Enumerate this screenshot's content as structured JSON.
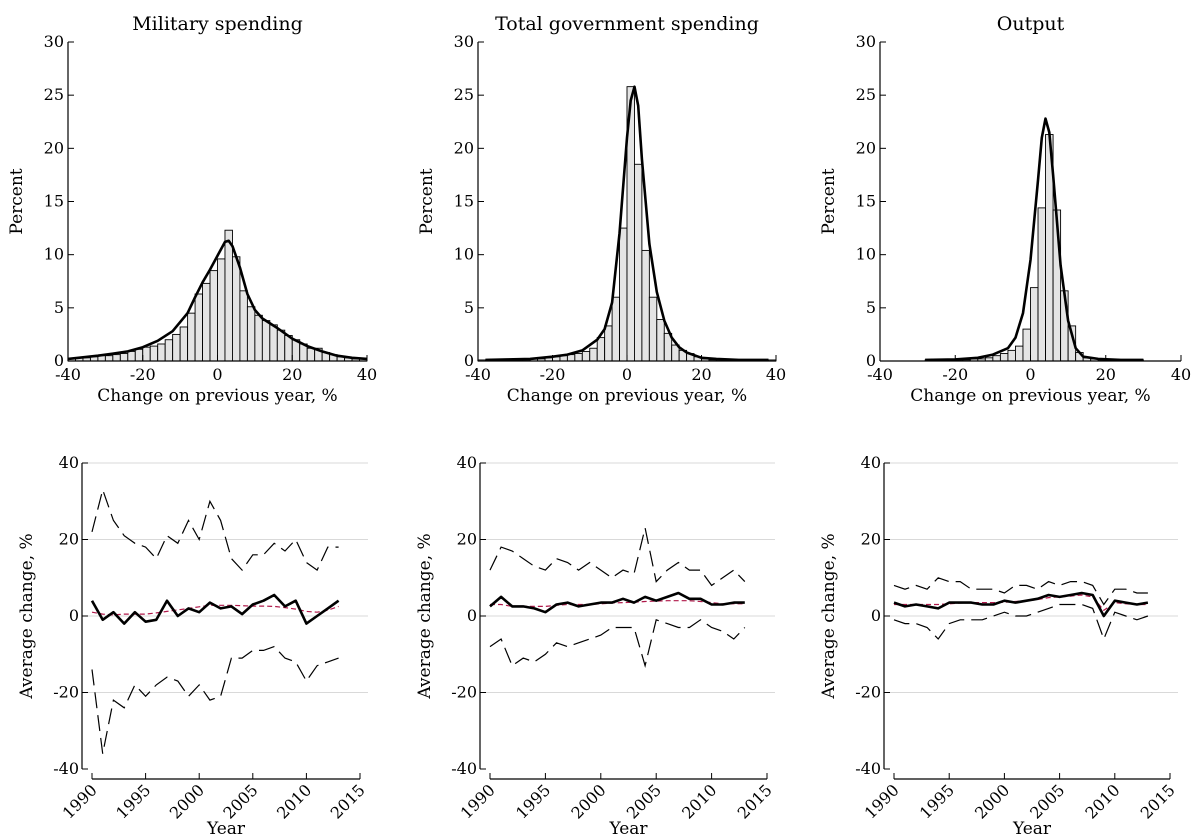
{
  "chart_data": [
    {
      "type": "bar",
      "title": "Military spending",
      "xlabel": "Change on previous year, %",
      "ylabel": "Percent",
      "xlim": [
        -40,
        40
      ],
      "ylim": [
        0,
        30
      ],
      "xticks": [
        -40,
        -20,
        0,
        20,
        40
      ],
      "yticks": [
        0,
        5,
        10,
        15,
        20,
        25,
        30
      ],
      "bin_width": 2,
      "bins_start": [
        -40,
        -38,
        -36,
        -34,
        -32,
        -30,
        -28,
        -26,
        -24,
        -22,
        -20,
        -18,
        -16,
        -14,
        -12,
        -10,
        -8,
        -6,
        -4,
        -2,
        0,
        2,
        4,
        6,
        8,
        10,
        12,
        14,
        16,
        18,
        20,
        22,
        24,
        26,
        28,
        30,
        32,
        34,
        36,
        38
      ],
      "values": [
        0.2,
        0.3,
        0.3,
        0.4,
        0.5,
        0.5,
        0.6,
        0.7,
        0.9,
        1.1,
        1.3,
        1.4,
        1.6,
        2.0,
        2.5,
        3.2,
        4.5,
        6.3,
        7.3,
        8.5,
        9.6,
        12.3,
        9.8,
        6.6,
        5.1,
        4.3,
        3.8,
        3.4,
        2.9,
        2.4,
        2.0,
        1.6,
        1.2,
        1.2,
        0.8,
        0.6,
        0.4,
        0.3,
        0.2,
        0.2
      ],
      "density_curve": [
        [
          -40,
          0.2
        ],
        [
          -36,
          0.35
        ],
        [
          -32,
          0.5
        ],
        [
          -28,
          0.7
        ],
        [
          -24,
          0.9
        ],
        [
          -20,
          1.3
        ],
        [
          -16,
          1.9
        ],
        [
          -12,
          2.8
        ],
        [
          -8,
          4.5
        ],
        [
          -6,
          6.0
        ],
        [
          -4,
          7.4
        ],
        [
          -2,
          8.6
        ],
        [
          0,
          9.9
        ],
        [
          2,
          11.2
        ],
        [
          3,
          11.3
        ],
        [
          4,
          10.8
        ],
        [
          6,
          8.8
        ],
        [
          8,
          6.3
        ],
        [
          10,
          4.8
        ],
        [
          12,
          4.0
        ],
        [
          16,
          3.1
        ],
        [
          20,
          2.1
        ],
        [
          24,
          1.4
        ],
        [
          28,
          0.9
        ],
        [
          32,
          0.5
        ],
        [
          36,
          0.3
        ],
        [
          40,
          0.2
        ]
      ]
    },
    {
      "type": "bar",
      "title": "Total government spending",
      "xlabel": "Change on previous year, %",
      "ylabel": "Percent",
      "xlim": [
        -40,
        40
      ],
      "ylim": [
        0,
        30
      ],
      "xticks": [
        -40,
        -20,
        0,
        20,
        40
      ],
      "yticks": [
        0,
        5,
        10,
        15,
        20,
        25,
        30
      ],
      "bin_width": 2,
      "bins_start": [
        -40,
        -38,
        -36,
        -34,
        -32,
        -30,
        -28,
        -26,
        -24,
        -22,
        -20,
        -18,
        -16,
        -14,
        -12,
        -10,
        -8,
        -6,
        -4,
        -2,
        0,
        2,
        4,
        6,
        8,
        10,
        12,
        14,
        16,
        18,
        20,
        22,
        24,
        26,
        28,
        30,
        32,
        34,
        36,
        38
      ],
      "values": [
        0.1,
        0.1,
        0.1,
        0.1,
        0.1,
        0.1,
        0.1,
        0.2,
        0.2,
        0.3,
        0.4,
        0.5,
        0.6,
        0.7,
        0.9,
        1.2,
        2.2,
        3.3,
        6.0,
        12.5,
        25.8,
        18.5,
        10.4,
        6.0,
        3.9,
        2.6,
        1.5,
        1.0,
        0.7,
        0.4,
        0.2,
        0.1,
        0.1,
        0.1,
        0.1,
        0.1,
        0.1,
        0.1,
        0.1,
        0.1
      ],
      "density_curve": [
        [
          -38,
          0.1
        ],
        [
          -32,
          0.15
        ],
        [
          -26,
          0.2
        ],
        [
          -20,
          0.4
        ],
        [
          -16,
          0.6
        ],
        [
          -12,
          1.0
        ],
        [
          -8,
          2.0
        ],
        [
          -6,
          3.0
        ],
        [
          -4,
          5.5
        ],
        [
          -2,
          12.0
        ],
        [
          0,
          21.0
        ],
        [
          1,
          24.5
        ],
        [
          2,
          25.8
        ],
        [
          3,
          24.0
        ],
        [
          4,
          19.0
        ],
        [
          6,
          11.0
        ],
        [
          8,
          6.5
        ],
        [
          10,
          3.8
        ],
        [
          12,
          2.2
        ],
        [
          14,
          1.3
        ],
        [
          16,
          0.8
        ],
        [
          20,
          0.3
        ],
        [
          24,
          0.2
        ],
        [
          30,
          0.1
        ],
        [
          38,
          0.1
        ]
      ]
    },
    {
      "type": "bar",
      "title": "Output",
      "xlabel": "Change on previous year, %",
      "ylabel": "Percent",
      "xlim": [
        -40,
        40
      ],
      "ylim": [
        0,
        30
      ],
      "xticks": [
        -40,
        -20,
        0,
        20,
        40
      ],
      "yticks": [
        0,
        5,
        10,
        15,
        20,
        25,
        30
      ],
      "bin_width": 2,
      "bins_start": [
        -28,
        -26,
        -24,
        -22,
        -20,
        -18,
        -16,
        -14,
        -12,
        -10,
        -8,
        -6,
        -4,
        -2,
        0,
        2,
        4,
        6,
        8,
        10,
        12,
        14,
        16,
        18,
        20,
        22,
        24,
        26,
        28
      ],
      "values": [
        0.1,
        0.1,
        0.1,
        0.1,
        0.1,
        0.1,
        0.2,
        0.2,
        0.3,
        0.5,
        0.7,
        1.0,
        1.4,
        3.0,
        6.9,
        14.4,
        21.3,
        14.2,
        6.6,
        3.3,
        0.8,
        0.3,
        0.2,
        0.1,
        0.1,
        0.1,
        0.1,
        0.1,
        0.1
      ],
      "density_curve": [
        [
          -28,
          0.1
        ],
        [
          -20,
          0.15
        ],
        [
          -14,
          0.3
        ],
        [
          -10,
          0.6
        ],
        [
          -6,
          1.2
        ],
        [
          -4,
          2.2
        ],
        [
          -2,
          4.5
        ],
        [
          0,
          9.5
        ],
        [
          2,
          17.0
        ],
        [
          3,
          21.0
        ],
        [
          4,
          22.8
        ],
        [
          5,
          21.5
        ],
        [
          6,
          17.5
        ],
        [
          8,
          9.0
        ],
        [
          10,
          3.8
        ],
        [
          12,
          1.2
        ],
        [
          14,
          0.4
        ],
        [
          18,
          0.2
        ],
        [
          24,
          0.1
        ],
        [
          30,
          0.1
        ]
      ]
    },
    {
      "type": "line",
      "xlabel": "Year",
      "ylabel": "Average change, %",
      "xlim": [
        1990,
        2015
      ],
      "ylim": [
        -40,
        40
      ],
      "xticks": [
        1990,
        1995,
        2000,
        2005,
        2010,
        2015
      ],
      "yticks": [
        -40,
        -20,
        0,
        20,
        40
      ],
      "x": [
        1990,
        1991,
        1992,
        1993,
        1994,
        1995,
        1996,
        1997,
        1998,
        1999,
        2000,
        2001,
        2002,
        2003,
        2004,
        2005,
        2006,
        2007,
        2008,
        2009,
        2010,
        2011,
        2012,
        2013
      ],
      "mean": [
        4,
        -1,
        1,
        -2,
        1,
        -1.5,
        -1,
        4,
        0,
        2,
        1,
        3.5,
        2,
        2.5,
        0.5,
        3,
        4,
        5.5,
        2.5,
        4,
        -2,
        0,
        2,
        4
      ],
      "trend": [
        1,
        0.5,
        0.3,
        0.5,
        0.5,
        0.5,
        0.8,
        1.2,
        1.6,
        2,
        2.4,
        2.8,
        2.8,
        2.8,
        2.7,
        2.6,
        2.6,
        2.5,
        2.2,
        1.8,
        1.2,
        1,
        1.5,
        2.5
      ],
      "upper": [
        22,
        33,
        25,
        21,
        19,
        18,
        15,
        21,
        19,
        25,
        20,
        30,
        25,
        15,
        12,
        16,
        16,
        19,
        17,
        20,
        14,
        12,
        18,
        18
      ],
      "lower": [
        -14,
        -36,
        -22,
        -24,
        -18,
        -21,
        -18,
        -16,
        -17,
        -21,
        -18,
        -22,
        -21,
        -11,
        -11,
        -9,
        -9,
        -8,
        -11,
        -12,
        -17,
        -13,
        -12,
        -11
      ]
    },
    {
      "type": "line",
      "xlabel": "Year",
      "ylabel": "Average change, %",
      "xlim": [
        1990,
        2015
      ],
      "ylim": [
        -40,
        40
      ],
      "xticks": [
        1990,
        1995,
        2000,
        2005,
        2010,
        2015
      ],
      "yticks": [
        -40,
        -20,
        0,
        20,
        40
      ],
      "x": [
        1990,
        1991,
        1992,
        1993,
        1994,
        1995,
        1996,
        1997,
        1998,
        1999,
        2000,
        2001,
        2002,
        2003,
        2004,
        2005,
        2006,
        2007,
        2008,
        2009,
        2010,
        2011,
        2012,
        2013
      ],
      "mean": [
        2.5,
        5,
        2.5,
        2.5,
        2,
        1,
        3,
        3.5,
        2.5,
        3,
        3.5,
        3.5,
        4.5,
        3.5,
        5,
        4,
        5,
        6,
        4.5,
        4.5,
        3,
        3,
        3.5,
        3.5
      ],
      "trend": [
        3,
        3,
        2.5,
        2.5,
        2.5,
        2.5,
        2.8,
        3,
        3,
        3,
        3.2,
        3.4,
        3.5,
        3.6,
        3.8,
        3.9,
        4,
        4,
        4,
        3.8,
        3.5,
        3.2,
        3.2,
        3.2
      ],
      "upper": [
        12,
        18,
        17,
        15,
        13,
        12,
        15,
        14,
        12,
        14,
        12,
        10,
        12,
        11,
        23,
        9,
        12,
        14,
        12,
        12,
        8,
        10,
        12,
        9
      ],
      "lower": [
        -8,
        -6,
        -13,
        -11,
        -12,
        -10,
        -7,
        -8,
        -7,
        -6,
        -5,
        -3,
        -3,
        -3,
        -13,
        -1,
        -2,
        -3,
        -3,
        -1,
        -3,
        -4,
        -6,
        -3
      ]
    },
    {
      "type": "line",
      "xlabel": "Year",
      "ylabel": "Average change, %",
      "xlim": [
        1990,
        2015
      ],
      "ylim": [
        -40,
        40
      ],
      "xticks": [
        1990,
        1995,
        2000,
        2005,
        2010,
        2015
      ],
      "yticks": [
        -40,
        -20,
        0,
        20,
        40
      ],
      "x": [
        1990,
        1991,
        1992,
        1993,
        1994,
        1995,
        1996,
        1997,
        1998,
        1999,
        2000,
        2001,
        2002,
        2003,
        2004,
        2005,
        2006,
        2007,
        2008,
        2009,
        2010,
        2011,
        2012,
        2013
      ],
      "mean": [
        3.5,
        2.5,
        3,
        2.5,
        2,
        3.5,
        3.5,
        3.5,
        3,
        3,
        4,
        3.5,
        4,
        4.5,
        5.5,
        5,
        5.5,
        6,
        5.5,
        0,
        4,
        3.5,
        3,
        3.5
      ],
      "trend": [
        3,
        3,
        3,
        3,
        3,
        3.2,
        3.4,
        3.5,
        3.5,
        3.5,
        3.6,
        3.8,
        4,
        4.3,
        4.8,
        5,
        5.2,
        5.5,
        5,
        1.5,
        3.5,
        3.2,
        3,
        3
      ],
      "upper": [
        8,
        7,
        8,
        7,
        10,
        9,
        9,
        7,
        7,
        7,
        6,
        8,
        8,
        7,
        9,
        8,
        9,
        9,
        8,
        3,
        7,
        7,
        6,
        6
      ],
      "lower": [
        -1,
        -2,
        -2,
        -3,
        -6,
        -2,
        -1,
        -1,
        -1,
        0,
        1,
        0,
        0,
        1,
        2,
        3,
        3,
        3,
        2,
        -6,
        1,
        0,
        -1,
        0
      ]
    }
  ]
}
